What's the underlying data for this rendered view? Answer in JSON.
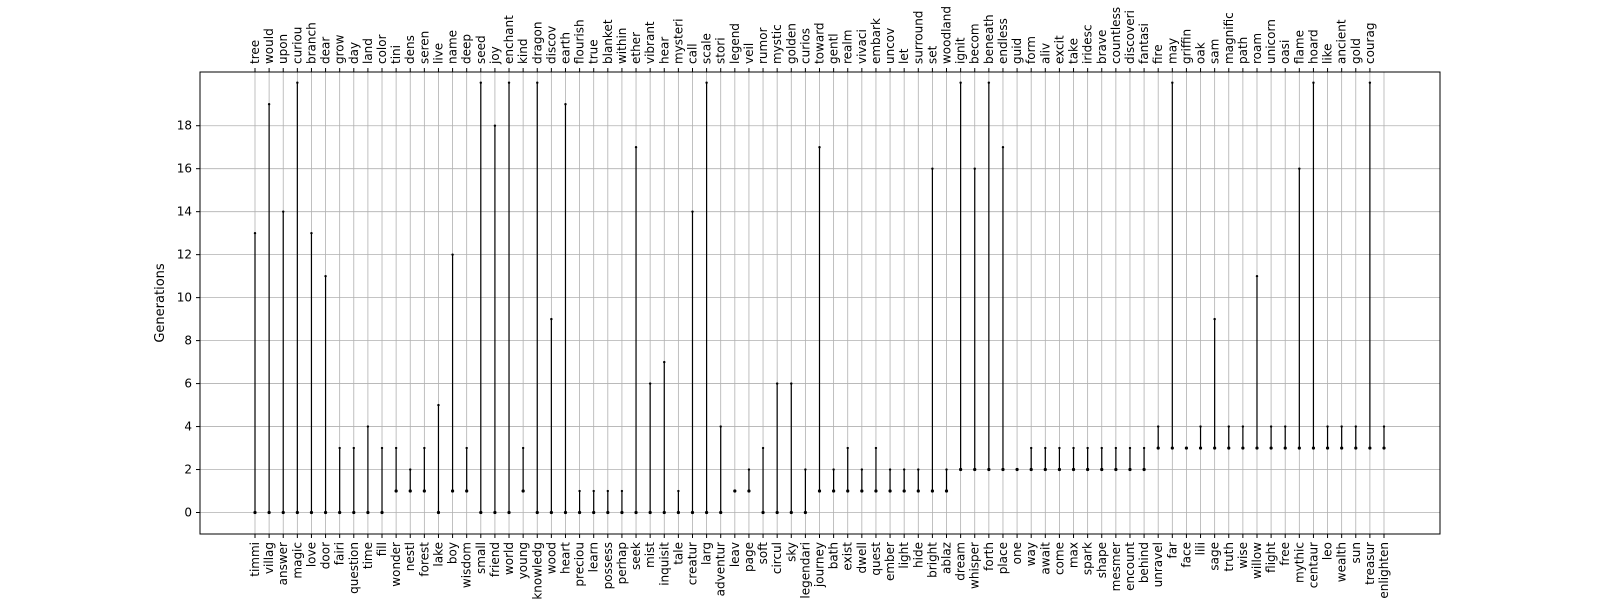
{
  "chart_data": {
    "type": "scatter",
    "title": "",
    "xlabel": "",
    "ylabel": "Generations",
    "ylim": [
      -1,
      20.5
    ],
    "yticks": [
      0,
      2,
      4,
      6,
      8,
      10,
      12,
      14,
      16,
      18
    ],
    "grid": true,
    "categories_bottom": [
      "timmi",
      "villag",
      "answer",
      "magic",
      "love",
      "door",
      "fairi",
      "question",
      "time",
      "fill",
      "wonder",
      "nestl",
      "forest",
      "lake",
      "boy",
      "wisdom",
      "small",
      "friend",
      "world",
      "young",
      "knowledg",
      "wood",
      "heart",
      "preciou",
      "learn",
      "possess",
      "perhap",
      "seek",
      "mist",
      "inquisit",
      "tale",
      "creatur",
      "larg",
      "adventur",
      "leav",
      "page",
      "soft",
      "circul",
      "sky",
      "legendari",
      "journey",
      "bath",
      "exist",
      "dwell",
      "quest",
      "ember",
      "light",
      "hide",
      "bright",
      "ablaz",
      "dream",
      "whisper",
      "forth",
      "place",
      "one",
      "way",
      "await",
      "come",
      "max",
      "spark",
      "shape",
      "mesmer",
      "encount",
      "behind",
      "unravel",
      "far",
      "face",
      "lili",
      "sage",
      "truth",
      "wise",
      "willow",
      "flight",
      "free",
      "mythic",
      "centaur",
      "leo",
      "wealth",
      "sun",
      "treasur",
      "enlighten"
    ],
    "categories_top": [
      "tree",
      "would",
      "upon",
      "curiou",
      "branch",
      "dear",
      "grow",
      "day",
      "land",
      "color",
      "tini",
      "dens",
      "seren",
      "live",
      "name",
      "deep",
      "seed",
      "joy",
      "enchant",
      "kind",
      "dragon",
      "discov",
      "earth",
      "flourish",
      "true",
      "blanket",
      "within",
      "ether",
      "vibrant",
      "hear",
      "mysteri",
      "call",
      "scale",
      "stori",
      "legend",
      "veil",
      "rumor",
      "mystic",
      "golden",
      "curios",
      "toward",
      "gentl",
      "realm",
      "vivaci",
      "embark",
      "uncov",
      "let",
      "surround",
      "set",
      "woodland",
      "ignit",
      "becom",
      "beneath",
      "endless",
      "guid",
      "form",
      "aliv",
      "excit",
      "take",
      "iridesc",
      "brave",
      "countless",
      "discoveri",
      "fantasi",
      "fire",
      "may",
      "griffin",
      "oak",
      "sam",
      "magnific",
      "path",
      "roam",
      "unicorn",
      "oasi",
      "flame",
      "hoard",
      "like",
      "ancient",
      "gold",
      "courag"
    ],
    "series": [
      {
        "values": [
          [
            0,
            13
          ],
          [
            0,
            19
          ],
          [
            0,
            14
          ],
          [
            0,
            20
          ],
          [
            0,
            13
          ],
          [
            0,
            11
          ],
          [
            0,
            3
          ],
          [
            0,
            3
          ],
          [
            0,
            4
          ],
          [
            0,
            3
          ],
          [
            1,
            3
          ],
          [
            1,
            2
          ],
          [
            1,
            3
          ],
          [
            0,
            5
          ],
          [
            1,
            12
          ],
          [
            1,
            3
          ],
          [
            0,
            20
          ],
          [
            0,
            18
          ],
          [
            0,
            20
          ],
          [
            1,
            3
          ],
          [
            0,
            20
          ],
          [
            0,
            9
          ],
          [
            0,
            19
          ],
          [
            0,
            1
          ],
          [
            0,
            1
          ],
          [
            0,
            1
          ],
          [
            0,
            1
          ],
          [
            0,
            17
          ],
          [
            0,
            6
          ],
          [
            0,
            7
          ],
          [
            0,
            1
          ],
          [
            0,
            14
          ],
          [
            0,
            20
          ],
          [
            0,
            4
          ],
          [
            1,
            1
          ],
          [
            1,
            2
          ],
          [
            0,
            3
          ],
          [
            0,
            6
          ],
          [
            0,
            6
          ],
          [
            0,
            2
          ],
          [
            1,
            17
          ],
          [
            1,
            2
          ],
          [
            1,
            3
          ],
          [
            1,
            2
          ],
          [
            1,
            3
          ],
          [
            1,
            2
          ],
          [
            1,
            2
          ],
          [
            1,
            2
          ],
          [
            1,
            16
          ],
          [
            1,
            2
          ],
          [
            2,
            20
          ],
          [
            2,
            16
          ],
          [
            2,
            20
          ],
          [
            2,
            17
          ],
          [
            2,
            2
          ],
          [
            2,
            3
          ],
          [
            2,
            3
          ],
          [
            2,
            3
          ],
          [
            2,
            3
          ],
          [
            2,
            3
          ],
          [
            2,
            3
          ],
          [
            2,
            3
          ],
          [
            2,
            3
          ],
          [
            2,
            3
          ],
          [
            3,
            4
          ],
          [
            3,
            20
          ],
          [
            3,
            3
          ],
          [
            3,
            4
          ],
          [
            3,
            9
          ],
          [
            3,
            4
          ],
          [
            3,
            4
          ],
          [
            3,
            11
          ],
          [
            3,
            4
          ],
          [
            3,
            4
          ],
          [
            3,
            16
          ],
          [
            3,
            20
          ],
          [
            3,
            4
          ],
          [
            3,
            4
          ],
          [
            3,
            4
          ],
          [
            3,
            20
          ],
          [
            3,
            4
          ],
          [
            3,
            19
          ],
          [
            3,
            5
          ],
          [
            3,
            4
          ],
          [
            3,
            4
          ],
          [
            3,
            4
          ],
          [
            3,
            20
          ],
          [
            3,
            4
          ],
          [
            3,
            4
          ],
          [
            4,
            17
          ],
          [
            4,
            20
          ],
          [
            4,
            4
          ],
          [
            4,
            17
          ],
          [
            4,
            20
          ],
          [
            4,
            5
          ],
          [
            4,
            5
          ],
          [
            4,
            11
          ],
          [
            4,
            11
          ],
          [
            4,
            19
          ],
          [
            4,
            12
          ],
          [
            4,
            5
          ],
          [
            4,
            5
          ],
          [
            4,
            19
          ],
          [
            4,
            5
          ],
          [
            4,
            18
          ],
          [
            5,
            19
          ],
          [
            5,
            19
          ],
          [
            5,
            7
          ],
          [
            5,
            10
          ],
          [
            5,
            6
          ],
          [
            5,
            6
          ],
          [
            5,
            8
          ],
          [
            5,
            8
          ],
          [
            5,
            18
          ],
          [
            5,
            18
          ],
          [
            5,
            18
          ],
          [
            5,
            8
          ],
          [
            5,
            7
          ],
          [
            5,
            8
          ],
          [
            5,
            13
          ],
          [
            5,
            9
          ],
          [
            5,
            9
          ],
          [
            5,
            8
          ],
          [
            6,
            17
          ],
          [
            6,
            13
          ],
          [
            6,
            7
          ],
          [
            6,
            13
          ],
          [
            7,
            14
          ],
          [
            7,
            19
          ],
          [
            7,
            9
          ],
          [
            7,
            19
          ],
          [
            7,
            9
          ],
          [
            8,
            20
          ],
          [
            8,
            11
          ],
          [
            8,
            10
          ],
          [
            9,
            12
          ],
          [
            9,
            10
          ],
          [
            9,
            20
          ],
          [
            9,
            19
          ],
          [
            9,
            12
          ],
          [
            9,
            16
          ],
          [
            9,
            10
          ],
          [
            10,
            10
          ],
          [
            10,
            11
          ],
          [
            10,
            12
          ],
          [
            10,
            11
          ],
          [
            10,
            12
          ],
          [
            10,
            11
          ],
          [
            10,
            13
          ],
          [
            12,
            13
          ],
          [
            12,
            17
          ],
          [
            12,
            14
          ],
          [
            12,
            14
          ],
          [
            13,
            14
          ],
          [
            13,
            14
          ],
          [
            13,
            16
          ],
          [
            13,
            14
          ],
          [
            13,
            14
          ],
          [
            13,
            15
          ],
          [
            13,
            18
          ],
          [
            13,
            15
          ],
          [
            13,
            15
          ],
          [
            14,
            15
          ],
          [
            14,
            16
          ],
          [
            15,
            16
          ],
          [
            15,
            17
          ],
          [
            15,
            17
          ],
          [
            15,
            18
          ],
          [
            16,
            19
          ],
          [
            16,
            19
          ],
          [
            16,
            20
          ],
          [
            17,
            18
          ],
          [
            17,
            18
          ],
          [
            17,
            18
          ],
          [
            18,
            19
          ],
          [
            18,
            19
          ],
          [
            18,
            19
          ],
          [
            18,
            19
          ],
          [
            19,
            20
          ],
          [
            19,
            20
          ],
          [
            19,
            20
          ],
          [
            19,
            20
          ],
          [
            19,
            20
          ],
          [
            19,
            20
          ],
          [
            19,
            20
          ],
          [
            19,
            20
          ],
          [
            19,
            20
          ],
          [
            19,
            20
          ],
          [
            19,
            20
          ],
          [
            19,
            20
          ],
          [
            19,
            20
          ],
          [
            19,
            20
          ],
          [
            19,
            20
          ],
          [
            19,
            20
          ],
          [
            19,
            20
          ],
          [
            19,
            20
          ],
          [
            19,
            20
          ],
          [
            19,
            20
          ],
          [
            19,
            20
          ],
          [
            19,
            20
          ],
          [
            19,
            20
          ],
          [
            19,
            20
          ],
          [
            19,
            20
          ],
          [
            19,
            20
          ],
          [
            19,
            20
          ],
          [
            19,
            20
          ]
        ]
      }
    ]
  }
}
